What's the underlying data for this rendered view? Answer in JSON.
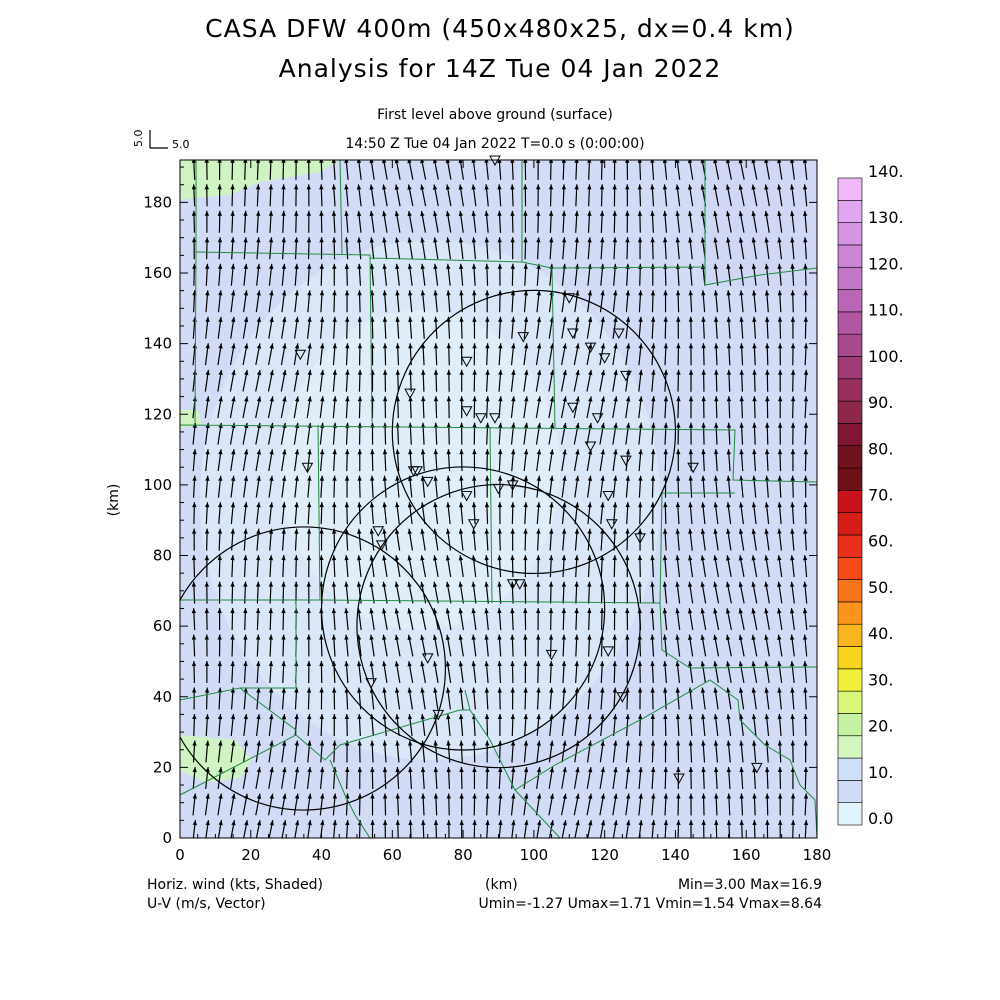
{
  "chart_data": {
    "type": "heatmap",
    "title": "CASA DFW 400m (450x480x25, dx=0.4 km)",
    "subtitle": "Analysis for 14Z Tue 04 Jan 2022",
    "level_label": "First level above ground (surface)",
    "time_label": "14:50 Z Tue 04 Jan 2022    T=0.0 s (0:00:00)",
    "xlabel": "(km)",
    "ylabel": "(km)",
    "xlim": [
      0,
      180
    ],
    "ylim": [
      0,
      192
    ],
    "xticks": [
      "0",
      "20",
      "40",
      "60",
      "80",
      "100",
      "120",
      "140",
      "160",
      "180"
    ],
    "yticks": [
      "0",
      "20",
      "40",
      "60",
      "80",
      "100",
      "120",
      "140",
      "160",
      "180"
    ],
    "vector_ref": {
      "label": "5.0",
      "value": 5.0
    },
    "colorbar": {
      "levels": [
        "0.0",
        "10.",
        "20.",
        "30.",
        "40.",
        "50.",
        "60.",
        "70.",
        "80.",
        "90.",
        "100.",
        "110.",
        "120.",
        "130.",
        "140."
      ],
      "colors": [
        "#e2f4fb",
        "#d0dcf6",
        "#cde0f7",
        "#d3f5c0",
        "#c5f2a2",
        "#d8f779",
        "#f0ef3c",
        "#f9d51f",
        "#fbb51e",
        "#fb931d",
        "#f97519",
        "#f44b18",
        "#ea2f1b",
        "#d71d17",
        "#c8111a",
        "#6e1018",
        "#72111f",
        "#811634",
        "#8e2648",
        "#98305e",
        "#a03b76",
        "#a8488d",
        "#b157a2",
        "#ba66b6",
        "#c477c7",
        "#cc86d3",
        "#d695e2",
        "#e0a6ef",
        "#f0b8f8"
      ]
    },
    "radars": [
      {
        "x": 100,
        "y": 115,
        "r": 40
      },
      {
        "x": 80,
        "y": 65,
        "r": 40
      },
      {
        "x": 35,
        "y": 48,
        "r": 40
      },
      {
        "x": 90,
        "y": 60,
        "r": 40
      }
    ],
    "stations": [
      [
        110,
        153
      ],
      [
        111,
        143
      ],
      [
        116,
        139
      ],
      [
        124,
        143
      ],
      [
        120,
        136
      ],
      [
        126,
        131
      ],
      [
        97,
        142
      ],
      [
        81,
        135
      ],
      [
        65,
        126
      ],
      [
        81,
        121
      ],
      [
        85,
        119
      ],
      [
        89,
        119
      ],
      [
        111,
        122
      ],
      [
        118,
        119
      ],
      [
        116,
        111
      ],
      [
        126,
        107
      ],
      [
        145,
        105
      ],
      [
        66,
        104
      ],
      [
        67,
        104
      ],
      [
        70,
        101
      ],
      [
        81,
        97
      ],
      [
        90,
        99
      ],
      [
        94,
        100
      ],
      [
        121,
        97
      ],
      [
        83,
        89
      ],
      [
        122,
        89
      ],
      [
        130,
        85
      ],
      [
        56,
        87
      ],
      [
        57,
        83
      ],
      [
        94,
        72
      ],
      [
        96,
        72
      ],
      [
        70,
        51
      ],
      [
        105,
        52
      ],
      [
        121,
        53
      ],
      [
        54,
        44
      ],
      [
        125,
        40
      ],
      [
        73,
        35
      ],
      [
        141,
        17
      ],
      [
        163,
        20
      ],
      [
        34,
        137
      ],
      [
        36,
        105
      ],
      [
        89,
        192
      ]
    ],
    "footer": {
      "left1": "Horiz. wind (kts, Shaded)",
      "left2": "U-V (m/s, Vector)",
      "center": "(km)",
      "right1": "Min=3.00 Max=16.9",
      "right2": "Umin=-1.27 Umax=1.71 Vmin=1.54 Vmax=8.64"
    }
  }
}
